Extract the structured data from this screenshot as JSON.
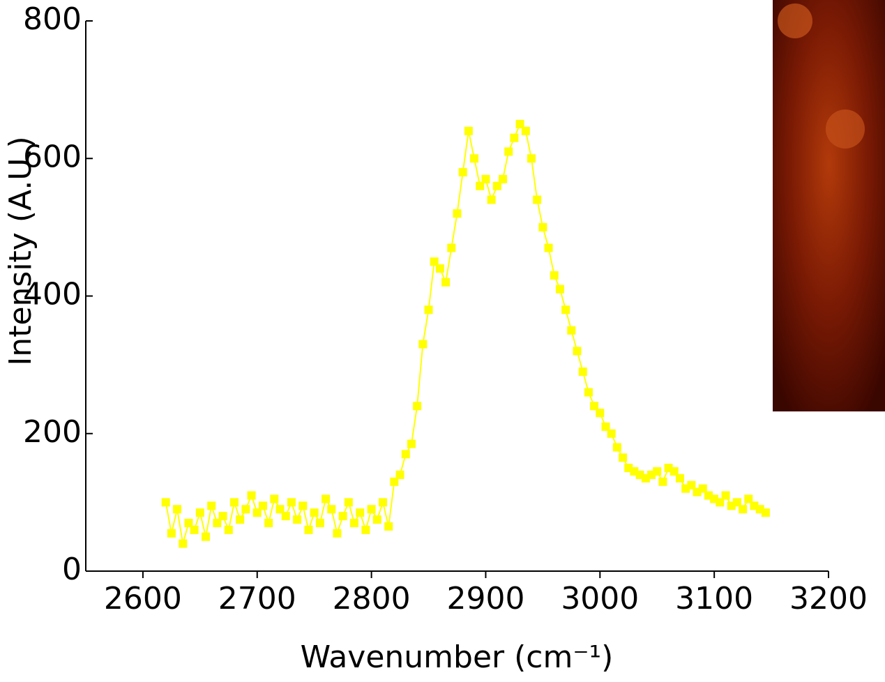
{
  "chart_data": {
    "type": "line",
    "y_label": "Intensity (A.U.)",
    "x_label": "Wavenumber (cm⁻¹)",
    "xlim": [
      2550,
      3200
    ],
    "xticks": [
      2600,
      2700,
      2800,
      2900,
      3000,
      3100,
      3200
    ],
    "ylim": [
      0,
      800
    ],
    "yticks": [
      0,
      200,
      400,
      600,
      800
    ],
    "x": [
      2620,
      2625,
      2630,
      2635,
      2640,
      2645,
      2650,
      2655,
      2660,
      2665,
      2670,
      2675,
      2680,
      2685,
      2690,
      2695,
      2700,
      2705,
      2710,
      2715,
      2720,
      2725,
      2730,
      2735,
      2740,
      2745,
      2750,
      2755,
      2760,
      2765,
      2770,
      2775,
      2780,
      2785,
      2790,
      2795,
      2800,
      2805,
      2810,
      2815,
      2820,
      2825,
      2830,
      2835,
      2840,
      2845,
      2850,
      2855,
      2860,
      2865,
      2870,
      2875,
      2880,
      2885,
      2890,
      2895,
      2900,
      2905,
      2910,
      2915,
      2920,
      2925,
      2930,
      2935,
      2940,
      2945,
      2950,
      2955,
      2960,
      2965,
      2970,
      2975,
      2980,
      2985,
      2990,
      2995,
      3000,
      3005,
      3010,
      3015,
      3020,
      3025,
      3030,
      3035,
      3040,
      3045,
      3050,
      3055,
      3060,
      3065,
      3070,
      3075,
      3080,
      3085,
      3090,
      3095,
      3100,
      3105,
      3110,
      3115,
      3120,
      3125,
      3130,
      3135,
      3140,
      3145
    ],
    "series": [
      {
        "color": "#ffff00",
        "values": [
          100,
          55,
          90,
          40,
          70,
          60,
          85,
          50,
          95,
          70,
          80,
          60,
          100,
          75,
          90,
          110,
          85,
          95,
          70,
          105,
          90,
          80,
          100,
          75,
          95,
          60,
          85,
          70,
          105,
          90,
          55,
          80,
          100,
          70,
          85,
          60,
          90,
          75,
          100,
          65,
          130,
          140,
          170,
          185,
          240,
          330,
          380,
          450,
          440,
          420,
          470,
          520,
          580,
          640,
          600,
          560,
          570,
          540,
          560,
          570,
          610,
          630,
          650,
          640,
          600,
          540,
          500,
          470,
          430,
          410,
          380,
          350,
          320,
          290,
          260,
          240,
          230,
          210,
          200,
          180,
          165,
          150,
          145,
          140,
          135,
          140,
          145,
          130,
          150,
          145,
          135,
          120,
          125,
          115,
          120,
          110,
          105,
          100,
          110,
          95,
          100,
          90,
          105,
          95,
          90,
          85
        ]
      }
    ]
  }
}
